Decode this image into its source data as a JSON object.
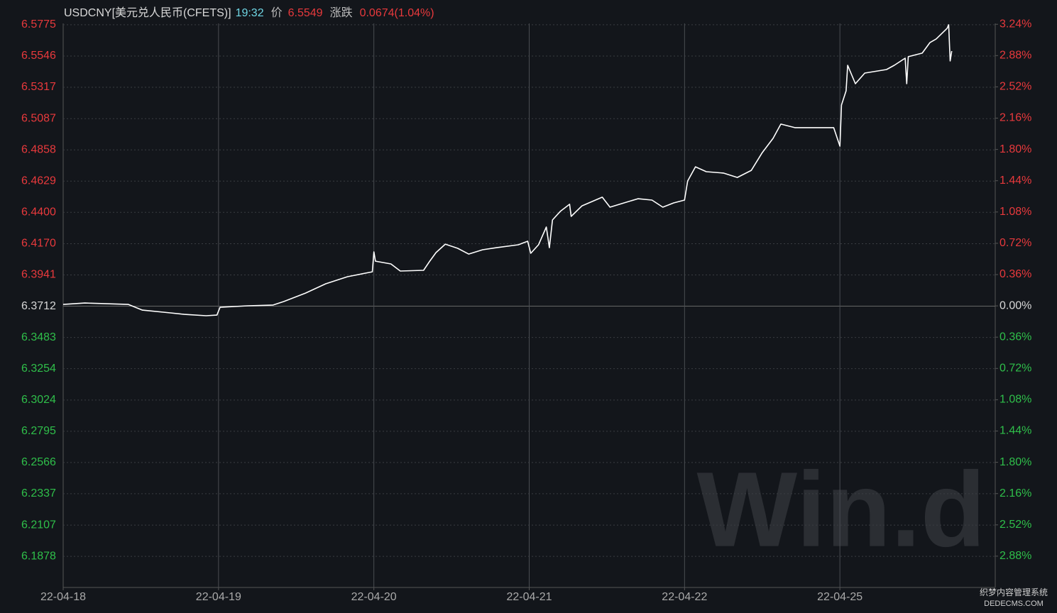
{
  "chart_data": {
    "type": "line",
    "title": "USDCNY[美元兑人民币(CFETS)]",
    "time": "19:32",
    "price_label": "价",
    "price": "6.5549",
    "change_label": "涨跌",
    "change": "0.0674(1.04%)",
    "watermark": "Win.d",
    "corner_text": [
      "织梦内容管理系统",
      "DEDECMS.COM"
    ],
    "color": "#ffffff",
    "up_color": "#e8393c",
    "down_color": "#2fbf4a",
    "grid": true,
    "xlim": [
      0,
      6
    ],
    "xticks": [
      {
        "value": 0,
        "label": "22-04-18"
      },
      {
        "value": 1,
        "label": "22-04-19"
      },
      {
        "value": 2,
        "label": "22-04-20"
      },
      {
        "value": 3,
        "label": "22-04-21"
      },
      {
        "value": 4,
        "label": "22-04-22"
      },
      {
        "value": 5,
        "label": "22-04-25"
      }
    ],
    "ylim": [
      6.165,
      6.5785
    ],
    "yticks": [
      6.5775,
      6.5546,
      6.5317,
      6.5087,
      6.4858,
      6.4629,
      {
        "value": 6.44,
        "label": "6.4400"
      },
      {
        "value": 6.417,
        "label": "6.4170"
      },
      6.3941,
      6.3712,
      6.3483,
      6.3254,
      6.3024,
      6.2795,
      6.2566,
      6.2337,
      6.2107,
      6.1878
    ],
    "y2lim": [
      -3.24,
      3.25
    ],
    "y2ticks": [
      {
        "value": 3.24,
        "label": "3.24%"
      },
      {
        "value": 2.88,
        "label": "2.88%"
      },
      {
        "value": 2.52,
        "label": "2.52%"
      },
      {
        "value": 2.16,
        "label": "2.16%"
      },
      {
        "value": 1.8,
        "label": "1.80%"
      },
      {
        "value": 1.44,
        "label": "1.44%"
      },
      {
        "value": 1.08,
        "label": "1.08%"
      },
      {
        "value": 0.72,
        "label": "0.72%"
      },
      {
        "value": 0.36,
        "label": "0.36%"
      },
      {
        "value": 0,
        "label": "0.00%"
      },
      {
        "value": -0.36,
        "label": "0.36%"
      },
      {
        "value": -0.72,
        "label": "0.72%"
      },
      {
        "value": -1.08,
        "label": "1.08%"
      },
      {
        "value": -1.44,
        "label": "1.44%"
      },
      {
        "value": -1.8,
        "label": "1.80%"
      },
      {
        "value": -2.16,
        "label": "2.16%"
      },
      {
        "value": -2.52,
        "label": "2.52%"
      },
      {
        "value": -2.88,
        "label": "2.88%"
      }
    ],
    "x": [
      0,
      0.14,
      0.42,
      0.51,
      0.69,
      0.78,
      0.92,
      0.99,
      1.01,
      1.19,
      1.35,
      1.42,
      1.56,
      1.69,
      1.83,
      1.99,
      2.0,
      2.01,
      2.11,
      2.17,
      2.32,
      2.36,
      2.4,
      2.46,
      2.54,
      2.61,
      2.7,
      2.79,
      2.93,
      2.99,
      3.01,
      3.06,
      3.11,
      3.13,
      3.15,
      3.2,
      3.26,
      3.27,
      3.34,
      3.47,
      3.52,
      3.61,
      3.7,
      3.79,
      3.86,
      3.93,
      4.0,
      4.02,
      4.07,
      4.14,
      4.25,
      4.34,
      4.43,
      4.5,
      4.57,
      4.62,
      4.71,
      4.84,
      4.96,
      5.0,
      5.01,
      5.04,
      5.05,
      5.1,
      5.16,
      5.3,
      5.35,
      5.42,
      5.43,
      5.44,
      5.53,
      5.58,
      5.62,
      5.69,
      5.7,
      5.71,
      5.72
    ],
    "values": [
      6.3725,
      6.3735,
      6.3725,
      6.3683,
      6.3663,
      6.3652,
      6.3642,
      6.3647,
      6.3704,
      6.3715,
      6.372,
      6.3746,
      6.3808,
      6.3876,
      6.3928,
      6.3964,
      6.411,
      6.4042,
      6.4022,
      6.397,
      6.3975,
      6.4042,
      6.4105,
      6.4167,
      6.4136,
      6.4094,
      6.4126,
      6.4141,
      6.4162,
      6.4188,
      6.41,
      6.4162,
      6.4292,
      6.4141,
      6.4344,
      6.4407,
      6.4459,
      6.437,
      6.4448,
      6.4511,
      6.4438,
      6.4469,
      6.45,
      6.449,
      6.4438,
      6.4469,
      6.449,
      6.463,
      6.4734,
      6.4698,
      6.4688,
      6.4656,
      6.4708,
      6.4838,
      6.4943,
      6.5047,
      6.5021,
      6.5021,
      6.5021,
      6.4885,
      6.5187,
      6.5291,
      6.5478,
      6.5343,
      6.5421,
      6.5447,
      6.5478,
      6.553,
      6.5343,
      6.5541,
      6.5567,
      6.5645,
      6.5671,
      6.5749,
      6.5775,
      6.551,
      6.5582
    ]
  }
}
